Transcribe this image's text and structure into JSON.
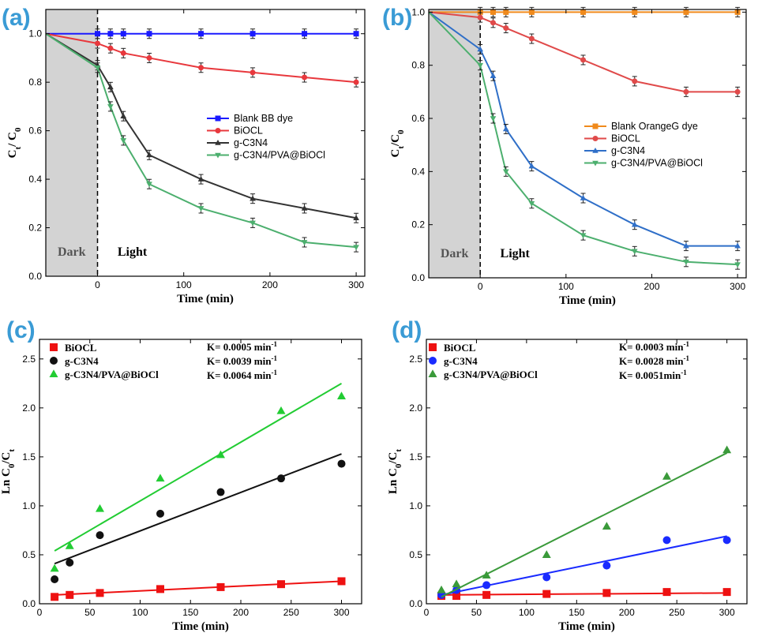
{
  "chart_data": [
    {
      "panel": "(a)",
      "type": "line",
      "xlabel": "Time (min)",
      "ylabel": "Ct/ C0",
      "xlim": [
        -60,
        310
      ],
      "ylim": [
        0,
        1.1
      ],
      "xticks": [
        0,
        100,
        200,
        300
      ],
      "yticks": [
        0.0,
        0.2,
        0.4,
        0.6,
        0.8,
        1.0
      ],
      "ytick_labels": [
        "0.0",
        "0.2",
        "0.4",
        "0.6",
        "0.8",
        "1.0"
      ],
      "dark_label": "Dark",
      "light_label": "Light",
      "legend_position": "center-right",
      "series": [
        {
          "name": "Blank BB dye",
          "color": "#1a1aff",
          "marker": "square",
          "x": [
            -60,
            0,
            15,
            30,
            60,
            120,
            180,
            240,
            300
          ],
          "y": [
            1.0,
            1.0,
            1.0,
            1.0,
            1.0,
            1.0,
            1.0,
            1.0,
            1.0
          ]
        },
        {
          "name": "BiOCL",
          "color": "#e8383d",
          "marker": "circle",
          "x": [
            -60,
            0,
            15,
            30,
            60,
            120,
            180,
            240,
            300
          ],
          "y": [
            1.0,
            0.96,
            0.94,
            0.92,
            0.9,
            0.86,
            0.84,
            0.82,
            0.8
          ]
        },
        {
          "name": "g-C3N4",
          "color": "#333333",
          "marker": "triangle-up",
          "x": [
            -60,
            0,
            15,
            30,
            60,
            120,
            180,
            240,
            300
          ],
          "y": [
            1.0,
            0.87,
            0.78,
            0.66,
            0.5,
            0.4,
            0.32,
            0.28,
            0.24
          ]
        },
        {
          "name": "g-C3N4/PVA@BiOCl",
          "color": "#4caf6e",
          "marker": "triangle-down",
          "x": [
            -60,
            0,
            15,
            30,
            60,
            120,
            180,
            240,
            300
          ],
          "y": [
            1.0,
            0.86,
            0.7,
            0.56,
            0.38,
            0.28,
            0.22,
            0.14,
            0.12
          ]
        }
      ]
    },
    {
      "panel": "(b)",
      "type": "line",
      "xlabel": "Time (min)",
      "ylabel": "Ct/C0",
      "xlim": [
        -60,
        310
      ],
      "ylim": [
        0,
        1.01
      ],
      "xticks": [
        0,
        100,
        200,
        300
      ],
      "yticks": [
        0.0,
        0.2,
        0.4,
        0.6,
        0.8,
        1.0
      ],
      "ytick_labels": [
        "0.0",
        "0.2",
        "0.4",
        "0.6",
        "0.8",
        "1.0"
      ],
      "dark_label": "Dark",
      "light_label": "Light",
      "legend_position": "center-right",
      "series": [
        {
          "name": "Blank OrangeG dye",
          "color": "#f08a1c",
          "marker": "square",
          "x": [
            -60,
            0,
            15,
            30,
            60,
            120,
            180,
            240,
            300
          ],
          "y": [
            1.0,
            1.0,
            1.0,
            1.0,
            1.0,
            1.0,
            1.0,
            1.0,
            1.0
          ]
        },
        {
          "name": "BiOCL",
          "color": "#e04a4a",
          "marker": "circle",
          "x": [
            -60,
            0,
            15,
            30,
            60,
            120,
            180,
            240,
            300
          ],
          "y": [
            1.0,
            0.98,
            0.96,
            0.94,
            0.9,
            0.82,
            0.74,
            0.7,
            0.7
          ]
        },
        {
          "name": "g-C3N4",
          "color": "#2f6fc8",
          "marker": "triangle-up",
          "x": [
            -60,
            0,
            15,
            30,
            60,
            120,
            180,
            240,
            300
          ],
          "y": [
            1.0,
            0.86,
            0.76,
            0.56,
            0.42,
            0.3,
            0.2,
            0.12,
            0.12
          ]
        },
        {
          "name": "g-C3N4/PVA@BiOCl",
          "color": "#4caf6e",
          "marker": "triangle-down",
          "x": [
            -60,
            0,
            15,
            30,
            60,
            120,
            180,
            240,
            300
          ],
          "y": [
            1.0,
            0.8,
            0.6,
            0.4,
            0.28,
            0.16,
            0.1,
            0.06,
            0.05
          ]
        }
      ]
    },
    {
      "panel": "(c)",
      "type": "scatter",
      "xlabel": "Time (min)",
      "ylabel": "Ln C0/Ct",
      "xlim": [
        0,
        320
      ],
      "ylim": [
        0,
        2.7
      ],
      "xticks": [
        0,
        50,
        100,
        150,
        200,
        250,
        300
      ],
      "yticks": [
        0.0,
        0.5,
        1.0,
        1.5,
        2.0,
        2.5
      ],
      "ytick_labels": [
        "0.0",
        "0.5",
        "1.0",
        "1.5",
        "2.0",
        "2.5"
      ],
      "legend_position": "top-left",
      "annotations": [
        "K= 0.0005 min-1",
        "K= 0.0039 min-1",
        "K= 0.0064 min-1"
      ],
      "series": [
        {
          "name": "BiOCL",
          "color": "#ee1111",
          "marker": "square",
          "x": [
            15,
            30,
            60,
            120,
            180,
            240,
            300
          ],
          "y": [
            0.07,
            0.09,
            0.11,
            0.15,
            0.17,
            0.2,
            0.23
          ],
          "fit": [
            [
              15,
              0.09
            ],
            [
              300,
              0.23
            ]
          ]
        },
        {
          "name": "g-C3N4",
          "color": "#111111",
          "marker": "circle",
          "x": [
            15,
            30,
            60,
            120,
            180,
            240,
            300
          ],
          "y": [
            0.25,
            0.42,
            0.7,
            0.92,
            1.14,
            1.28,
            1.43
          ],
          "fit": [
            [
              15,
              0.41
            ],
            [
              300,
              1.53
            ]
          ]
        },
        {
          "name": "g-C3N4/PVA@BiOCl",
          "color": "#22cc33",
          "marker": "triangle-up",
          "x": [
            15,
            30,
            60,
            120,
            180,
            240,
            300
          ],
          "y": [
            0.36,
            0.59,
            0.97,
            1.28,
            1.52,
            1.97,
            2.12
          ],
          "fit": [
            [
              15,
              0.54
            ],
            [
              300,
              2.25
            ]
          ]
        }
      ]
    },
    {
      "panel": "(d)",
      "type": "scatter",
      "xlabel": "Time (min)",
      "ylabel": "Ln C0/Ct",
      "xlim": [
        0,
        320
      ],
      "ylim": [
        0,
        2.7
      ],
      "xticks": [
        0,
        50,
        100,
        150,
        200,
        250,
        300
      ],
      "yticks": [
        0.0,
        0.5,
        1.0,
        1.5,
        2.0,
        2.5
      ],
      "ytick_labels": [
        "0.0",
        "0.5",
        "1.0",
        "1.5",
        "2.0",
        "2.5"
      ],
      "legend_position": "top-left",
      "annotations": [
        "K= 0.0003 min-1",
        "K= 0.0028 min-1",
        "K= 0.0051min-1"
      ],
      "series": [
        {
          "name": "BiOCL",
          "color": "#ee1111",
          "marker": "square",
          "x": [
            15,
            30,
            60,
            120,
            180,
            240,
            300
          ],
          "y": [
            0.08,
            0.08,
            0.09,
            0.1,
            0.11,
            0.12,
            0.12
          ],
          "fit": [
            [
              15,
              0.09
            ],
            [
              300,
              0.11
            ]
          ]
        },
        {
          "name": "g-C3N4",
          "color": "#1a2bff",
          "marker": "circle",
          "x": [
            15,
            30,
            60,
            120,
            180,
            240,
            300
          ],
          "y": [
            0.09,
            0.14,
            0.19,
            0.27,
            0.39,
            0.65,
            0.65
          ],
          "fit": [
            [
              15,
              0.09
            ],
            [
              300,
              0.69
            ]
          ]
        },
        {
          "name": "g-C3N4/PVA@BiOCl",
          "color": "#3a9a3a",
          "marker": "triangle-up",
          "x": [
            15,
            30,
            60,
            120,
            180,
            240,
            300
          ],
          "y": [
            0.14,
            0.2,
            0.29,
            0.5,
            0.79,
            1.3,
            1.57
          ],
          "fit": [
            [
              15,
              0.07
            ],
            [
              300,
              1.54
            ]
          ]
        }
      ]
    }
  ]
}
